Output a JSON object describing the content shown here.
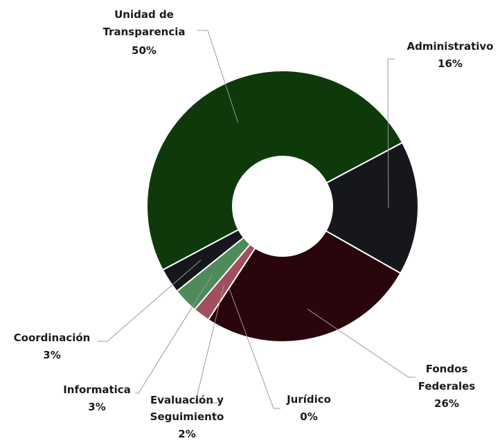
{
  "chart_data": {
    "type": "pie",
    "variant": "donut",
    "title": "",
    "slices": [
      {
        "label": "Unidad de Transparencia",
        "value": 50,
        "value_label": "50%",
        "color": "#0e3a0b"
      },
      {
        "label": "Administrativo",
        "value": 16,
        "value_label": "16%",
        "color": "#15171c"
      },
      {
        "label": "Fondos Federales",
        "value": 26,
        "value_label": "26%",
        "color": "#2a050c"
      },
      {
        "label": "Jurídico",
        "value": 0,
        "value_label": "0%",
        "color": "#2a050c"
      },
      {
        "label": "Evaluación y Seguimiento",
        "value": 2,
        "value_label": "2%",
        "color": "#a14e5e"
      },
      {
        "label": "Informatica",
        "value": 3,
        "value_label": "3%",
        "color": "#4f8a5a"
      },
      {
        "label": "Coordinación",
        "value": 3,
        "value_label": "3%",
        "color": "#15171c"
      }
    ],
    "legend": "none"
  }
}
